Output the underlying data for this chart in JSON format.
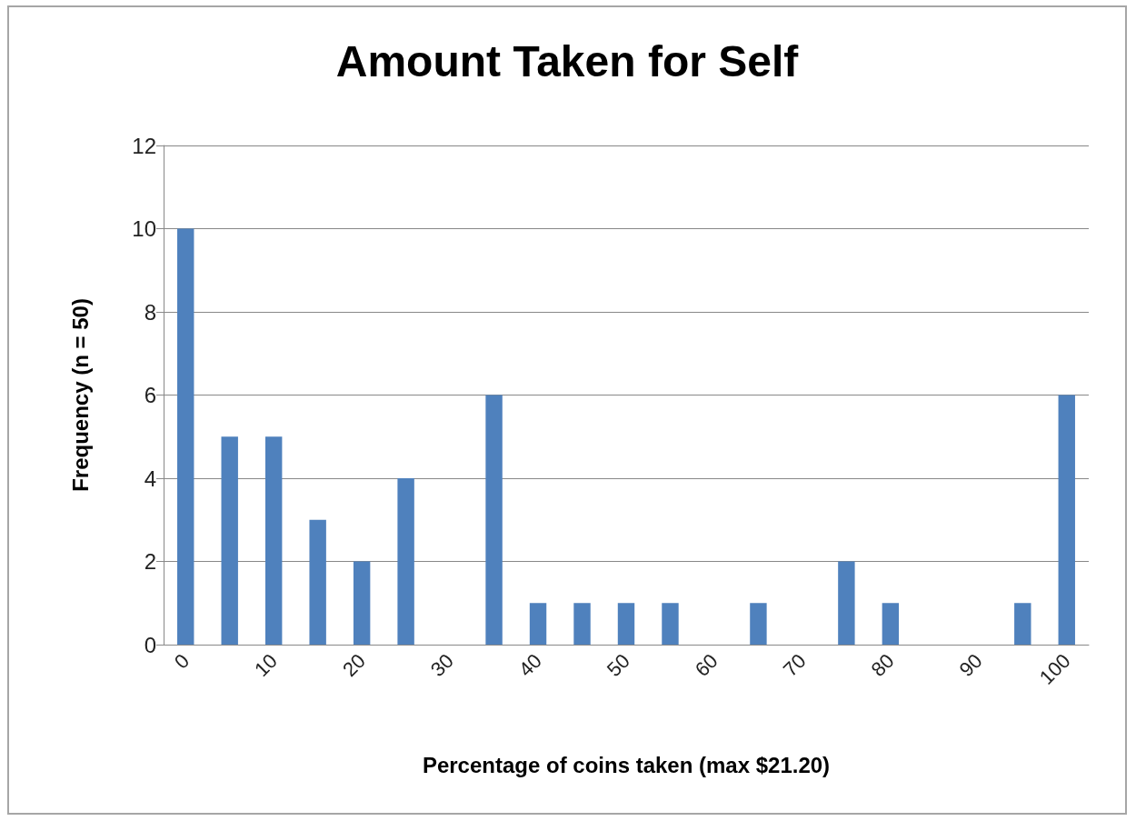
{
  "chart_data": {
    "type": "bar",
    "title": "Amount Taken for Self",
    "xlabel": "Percentage of coins taken (max $21.20)",
    "ylabel": "Frequency (n = 50)",
    "categories": [
      "0",
      null,
      "10",
      null,
      "20",
      null,
      "30",
      null,
      "40",
      null,
      "50",
      null,
      "60",
      null,
      "70",
      null,
      "80",
      null,
      "90",
      null,
      "100"
    ],
    "values": [
      10,
      5,
      5,
      3,
      2,
      4,
      0,
      6,
      1,
      1,
      1,
      1,
      0,
      1,
      0,
      2,
      1,
      0,
      0,
      1,
      6
    ],
    "color": "#4f81bd",
    "ylim": [
      0,
      12
    ],
    "yticks": [
      0,
      2,
      4,
      6,
      8,
      10,
      12
    ],
    "grid": "y"
  }
}
